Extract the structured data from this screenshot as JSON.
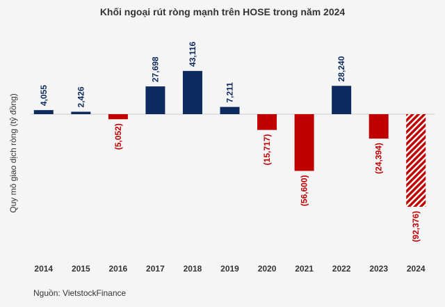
{
  "chart_data": {
    "type": "bar",
    "title": "Khối ngoại rút ròng mạnh trên HOSE trong năm 2024",
    "y_label": "Quy mô giao dịch ròng (tỷ đồng)",
    "source": "Nguồn: VietstockFinance",
    "categories": [
      "2014",
      "2015",
      "2016",
      "2017",
      "2018",
      "2019",
      "2020",
      "2021",
      "2022",
      "2023",
      "2024"
    ],
    "values": [
      4055,
      2426,
      -5052,
      27698,
      43116,
      7211,
      -15717,
      -56600,
      28240,
      -24394,
      -92376
    ],
    "value_labels": [
      "4,055",
      "2,426",
      "(5,052)",
      "27,698",
      "43,116",
      "7,211",
      "(15,717)",
      "(56,600)",
      "28,240",
      "(24,394)",
      "(92,376)"
    ],
    "positive_color": "#0d2a5e",
    "negative_color": "#c00000",
    "hatched": [
      false,
      false,
      false,
      false,
      false,
      false,
      false,
      false,
      false,
      false,
      true
    ],
    "ylim": [
      -100000,
      50000
    ]
  }
}
